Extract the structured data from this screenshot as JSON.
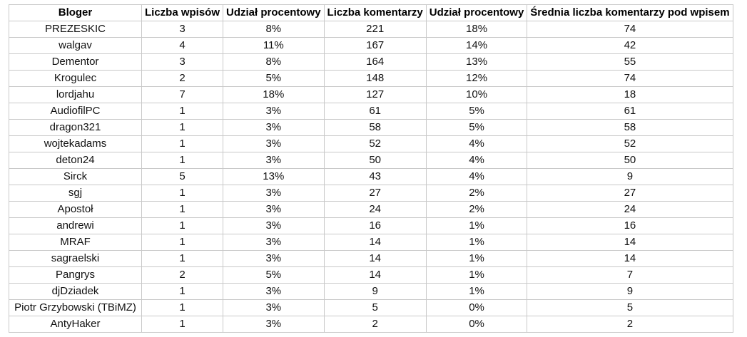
{
  "table": {
    "headers": [
      "Bloger",
      "Liczba wpisów",
      "Udział procentowy",
      "Liczba komentarzy",
      "Udział procentowy",
      "Średnia liczba komentarzy pod wpisem"
    ],
    "rows": [
      [
        "PREZESKIC",
        "3",
        "8%",
        "221",
        "18%",
        "74"
      ],
      [
        "walgav",
        "4",
        "11%",
        "167",
        "14%",
        "42"
      ],
      [
        "Dementor",
        "3",
        "8%",
        "164",
        "13%",
        "55"
      ],
      [
        "Krogulec",
        "2",
        "5%",
        "148",
        "12%",
        "74"
      ],
      [
        "lordjahu",
        "7",
        "18%",
        "127",
        "10%",
        "18"
      ],
      [
        "AudiofilPC",
        "1",
        "3%",
        "61",
        "5%",
        "61"
      ],
      [
        "dragon321",
        "1",
        "3%",
        "58",
        "5%",
        "58"
      ],
      [
        "wojtekadams",
        "1",
        "3%",
        "52",
        "4%",
        "52"
      ],
      [
        "deton24",
        "1",
        "3%",
        "50",
        "4%",
        "50"
      ],
      [
        "Sirck",
        "5",
        "13%",
        "43",
        "4%",
        "9"
      ],
      [
        "sgj",
        "1",
        "3%",
        "27",
        "2%",
        "27"
      ],
      [
        "Apostoł",
        "1",
        "3%",
        "24",
        "2%",
        "24"
      ],
      [
        "andrewi",
        "1",
        "3%",
        "16",
        "1%",
        "16"
      ],
      [
        "MRAF",
        "1",
        "3%",
        "14",
        "1%",
        "14"
      ],
      [
        "sagraelski",
        "1",
        "3%",
        "14",
        "1%",
        "14"
      ],
      [
        "Pangrys",
        "2",
        "5%",
        "14",
        "1%",
        "7"
      ],
      [
        "djDziadek",
        "1",
        "3%",
        "9",
        "1%",
        "9"
      ],
      [
        "Piotr Grzybowski (TBiMZ)",
        "1",
        "3%",
        "5",
        "0%",
        "5"
      ],
      [
        "AntyHaker",
        "1",
        "3%",
        "2",
        "0%",
        "2"
      ]
    ]
  }
}
